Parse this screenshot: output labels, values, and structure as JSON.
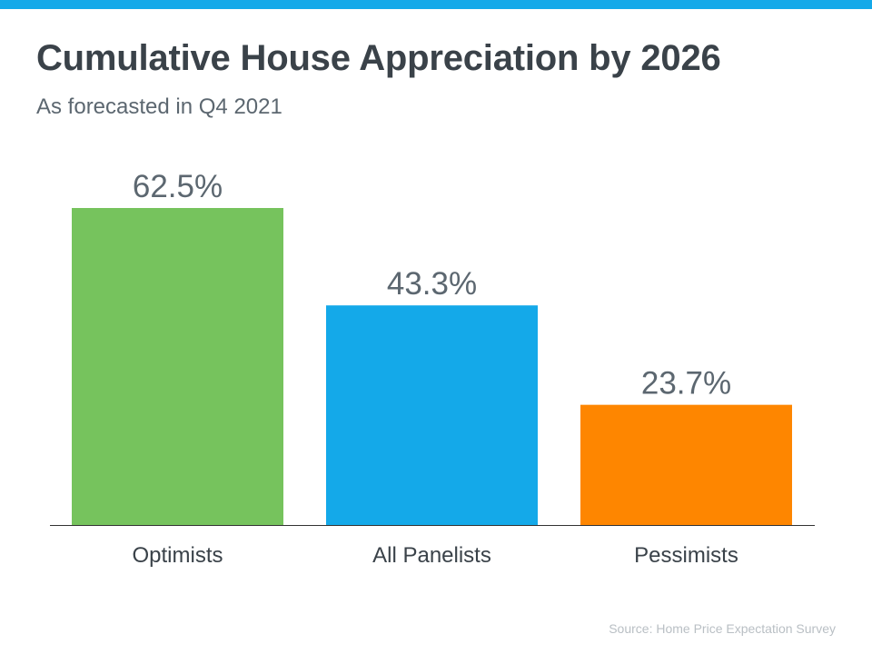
{
  "title": "Cumulative House Appreciation by 2026",
  "subtitle": "As forecasted in Q4 2021",
  "source": "Source: Home Price Expectation Survey",
  "colors": {
    "accent_bar": "#14a9e9",
    "title": "#3a4249",
    "label": "#3a4249",
    "value_label": "#5c6770",
    "axis": "#333333",
    "source": "#b9bfc4"
  },
  "chart_data": {
    "type": "bar",
    "categories": [
      "Optimists",
      "All Panelists",
      "Pessimists"
    ],
    "values": [
      62.5,
      43.3,
      23.7
    ],
    "value_labels": [
      "62.5%",
      "43.3%",
      "23.7%"
    ],
    "bar_colors": [
      "#76c35d",
      "#14a9e9",
      "#fe8600"
    ],
    "title": "Cumulative House Appreciation by 2026",
    "subtitle": "As forecasted in Q4 2021",
    "xlabel": "",
    "ylabel": "",
    "ylim": [
      0,
      62.5
    ],
    "grid": false,
    "legend": "none"
  }
}
